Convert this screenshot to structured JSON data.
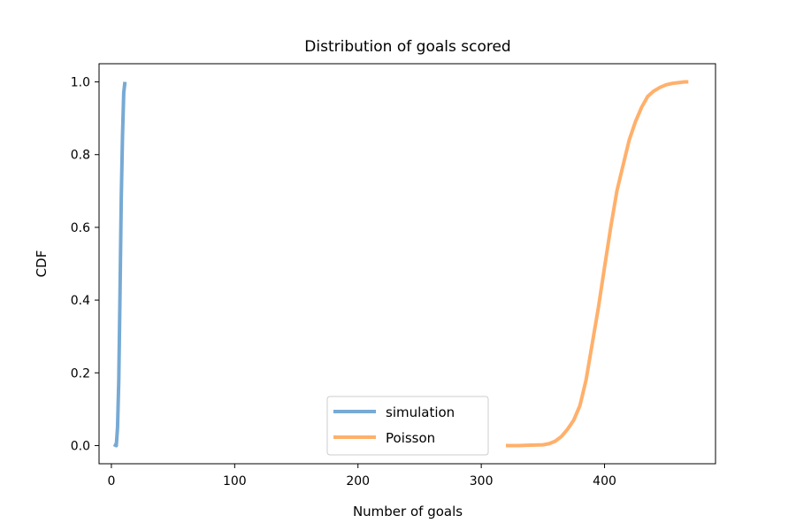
{
  "chart_data": {
    "type": "line",
    "title": "Distribution of goals scored",
    "xlabel": "Number of goals",
    "ylabel": "CDF",
    "xlim": [
      -10,
      490
    ],
    "ylim": [
      -0.05,
      1.05
    ],
    "xticks": [
      0,
      100,
      200,
      300,
      400
    ],
    "yticks": [
      0.0,
      0.2,
      0.4,
      0.6,
      0.8,
      1.0
    ],
    "xtick_labels": [
      "0",
      "100",
      "200",
      "300",
      "400"
    ],
    "ytick_labels": [
      "0.0",
      "0.2",
      "0.4",
      "0.6",
      "0.8",
      "1.0"
    ],
    "legend_position": "lower-center",
    "grid": false,
    "series": [
      {
        "name": "simulation",
        "color": "#77aad4",
        "x": [
          2,
          4,
          5,
          6,
          7,
          8,
          9,
          10,
          11
        ],
        "y": [
          0.003,
          0.0,
          0.05,
          0.18,
          0.42,
          0.68,
          0.85,
          0.97,
          1.0
        ]
      },
      {
        "name": "Poisson",
        "color": "#ffb06b",
        "x": [
          320,
          330,
          340,
          350,
          355,
          360,
          365,
          370,
          375,
          380,
          385,
          390,
          395,
          400,
          405,
          410,
          415,
          420,
          425,
          430,
          435,
          440,
          445,
          450,
          455,
          460,
          465,
          468
        ],
        "y": [
          0.0,
          0.0,
          0.001,
          0.002,
          0.005,
          0.012,
          0.025,
          0.045,
          0.07,
          0.11,
          0.18,
          0.28,
          0.38,
          0.49,
          0.6,
          0.7,
          0.77,
          0.84,
          0.89,
          0.93,
          0.96,
          0.975,
          0.985,
          0.992,
          0.996,
          0.998,
          1.0,
          1.0
        ]
      }
    ]
  }
}
